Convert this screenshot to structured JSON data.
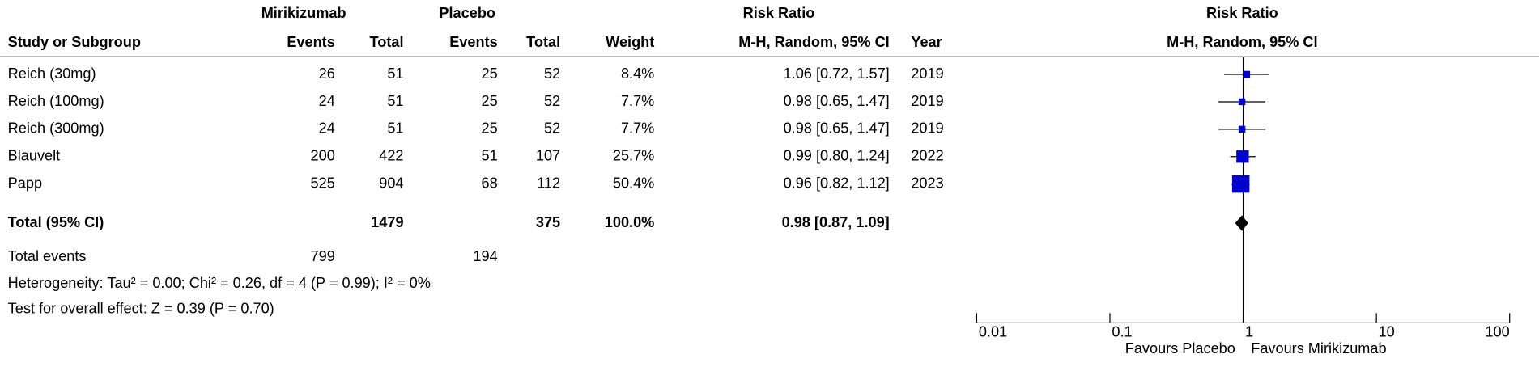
{
  "table": {
    "group_headers": [
      "Mirikizumab",
      "Placebo",
      "Risk Ratio"
    ],
    "columns": [
      "Study or Subgroup",
      "Events",
      "Total",
      "Events",
      "Total",
      "Weight",
      "M-H, Random, 95% CI",
      "Year"
    ],
    "rows": [
      [
        "Reich (30mg)",
        "26",
        "51",
        "25",
        "52",
        "8.4%",
        "1.06 [0.72, 1.57]",
        "2019"
      ],
      [
        "Reich (100mg)",
        "24",
        "51",
        "25",
        "52",
        "7.7%",
        "0.98 [0.65, 1.47]",
        "2019"
      ],
      [
        "Reich (300mg)",
        "24",
        "51",
        "25",
        "52",
        "7.7%",
        "0.98 [0.65, 1.47]",
        "2019"
      ],
      [
        "Blauvelt",
        "200",
        "422",
        "51",
        "107",
        "25.7%",
        "0.99 [0.80, 1.24]",
        "2022"
      ],
      [
        "Papp",
        "525",
        "904",
        "68",
        "112",
        "50.4%",
        "0.96 [0.82, 1.12]",
        "2023"
      ]
    ],
    "total_row": {
      "label": "Total (95% CI)",
      "total_1": "1479",
      "total_2": "375",
      "weight": "100.0%",
      "ci": "0.98 [0.87, 1.09]"
    },
    "total_events": {
      "label": "Total events",
      "events_1": "799",
      "events_2": "194"
    },
    "heterogeneity": "Heterogeneity: Tau² = 0.00; Chi² = 0.26, df = 4 (P = 0.99); I² = 0%",
    "overall_effect": "Test for overall effect: Z = 0.39 (P = 0.70)"
  },
  "chart_data": {
    "type": "forest",
    "title": "Risk Ratio",
    "subtitle": "M-H, Random, 95% CI",
    "log_scale": true,
    "xlim": [
      0.01,
      100
    ],
    "xticks": [
      0.01,
      0.1,
      1,
      10,
      100
    ],
    "reference_line": 1,
    "x_label_left": "Favours Placebo",
    "x_label_right": "Favours Mirikizumab",
    "color": "#0000cc",
    "estimates": [
      1.06,
      0.98,
      0.98,
      0.99,
      0.96
    ],
    "lower": [
      0.72,
      0.65,
      0.65,
      0.8,
      0.82
    ],
    "upper": [
      1.57,
      1.47,
      1.47,
      1.24,
      1.12
    ],
    "weights": [
      8.4,
      7.7,
      7.7,
      25.7,
      50.4
    ],
    "pooled": {
      "estimate": 0.98,
      "lower": 0.87,
      "upper": 1.09
    }
  }
}
